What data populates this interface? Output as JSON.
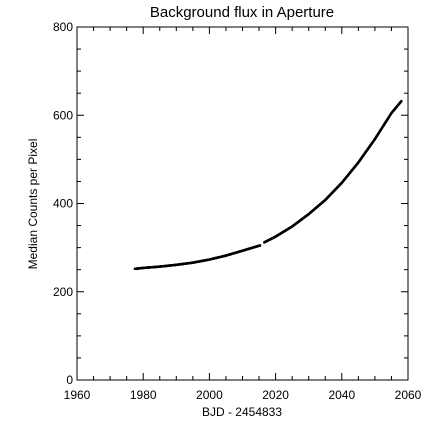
{
  "chart_data": {
    "type": "scatter",
    "title": "Background flux in Aperture",
    "xlabel": "BJD - 2454833",
    "ylabel": "Median Counts per Pixel",
    "xlim": [
      1960,
      2060
    ],
    "ylim": [
      0,
      800
    ],
    "x_major_ticks": [
      1960,
      1980,
      2000,
      2020,
      2040,
      2060
    ],
    "x_tick_labels": [
      "1960",
      "1980",
      "2000",
      "2020",
      "2040",
      "2060"
    ],
    "x_minor_step": 5,
    "y_major_ticks": [
      0,
      200,
      400,
      600,
      800
    ],
    "y_tick_labels": [
      "0",
      "200",
      "400",
      "600",
      "800"
    ],
    "y_minor_step": 50,
    "grid": false,
    "series": [
      {
        "marker_color": "#000000",
        "segments": [
          {
            "x": [
              1977.5,
              1980,
              1985,
              1990,
              1995,
              2000,
              2005,
              2010,
              2015.3
            ],
            "y": [
              252,
              254,
              257,
              261,
              266,
              273,
              282,
              293,
              305
            ]
          },
          {
            "x": [
              2016.6,
              2020,
              2025,
              2030,
              2035,
              2040,
              2045,
              2050,
              2055,
              2058
            ],
            "y": [
              312,
              325,
              348,
              376,
              408,
              447,
              493,
              546,
              605,
              632
            ]
          }
        ]
      }
    ]
  }
}
